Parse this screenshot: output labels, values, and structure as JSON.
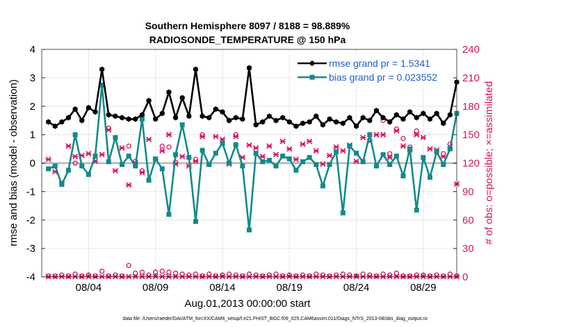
{
  "chart_data": {
    "type": "line",
    "title_line1": "Southern Hemisphere 8097 / 8188 = 98.889%",
    "title_line2": "RADIOSONDE_TEMPERATURE @ 150 hPa",
    "xlabel": "Aug.01,2013 00:00:00 start",
    "ylabel_left": "rmse and bias (model - observation)",
    "ylabel_right": "# of obs: o=possible; ×=assimilated",
    "ylim_left": [
      -4,
      4
    ],
    "ylim_right": [
      0,
      240
    ],
    "xlim": [
      0.5,
      31.5
    ],
    "left_ticks": [
      -4,
      -3,
      -2,
      -1,
      0,
      1,
      2,
      3,
      4
    ],
    "right_ticks": [
      0,
      30,
      60,
      90,
      120,
      150,
      180,
      210,
      240
    ],
    "x_ticks": [
      {
        "day": 4,
        "label": "08/04"
      },
      {
        "day": 9,
        "label": "08/09"
      },
      {
        "day": 14,
        "label": "08/14"
      },
      {
        "day": 19,
        "label": "08/19"
      },
      {
        "day": 24,
        "label": "08/24"
      },
      {
        "day": 29,
        "label": "08/29"
      }
    ],
    "legend": {
      "rmse_label": "rmse grand pr = 1.5341",
      "bias_label": "bias grand pr = 0.023552"
    },
    "footer": "data file: /Users/raeder/DAI/ATM_forcXX/CAM6_setup/f.e21.FHIST_BGC.f09_025.CAM6assim.011/Diags_NTrS_2013-08/obs_diag_output.nc",
    "colors": {
      "rmse": "#000000",
      "bias": "#138a8a",
      "obs": "#d6145f",
      "zero_line": "#b5b5b5",
      "grid": "#e6e6e6"
    },
    "series": [
      {
        "name": "rmse",
        "x": [
          1,
          1.5,
          2,
          2.5,
          3,
          3.5,
          4,
          4.5,
          5,
          5.5,
          6,
          6.5,
          7,
          7.5,
          8,
          8.5,
          9,
          9.5,
          10,
          10.5,
          11,
          11.5,
          12,
          12.5,
          13,
          13.5,
          14,
          14.5,
          15,
          15.5,
          16,
          16.5,
          17,
          17.5,
          18,
          18.5,
          19,
          19.5,
          20,
          20.5,
          21,
          21.5,
          22,
          22.5,
          23,
          23.5,
          24,
          24.5,
          25,
          25.5,
          26,
          26.5,
          27,
          27.5,
          28,
          28.5,
          29,
          29.5,
          30,
          30.5,
          31,
          31.5
        ],
        "values": [
          1.45,
          1.3,
          1.45,
          1.6,
          1.9,
          1.5,
          1.95,
          1.8,
          3.3,
          1.7,
          1.65,
          1.6,
          1.55,
          1.55,
          1.7,
          2.2,
          1.55,
          1.75,
          2.5,
          1.6,
          2.3,
          1.65,
          3.3,
          1.65,
          1.6,
          1.9,
          1.8,
          1.5,
          1.6,
          1.55,
          3.35,
          1.35,
          1.45,
          1.65,
          1.5,
          1.6,
          1.45,
          1.3,
          1.4,
          1.45,
          1.65,
          1.35,
          1.55,
          1.45,
          1.4,
          1.6,
          1.3,
          1.6,
          1.5,
          1.85,
          1.6,
          1.45,
          1.7,
          1.55,
          1.8,
          1.6,
          1.75,
          1.55,
          1.75,
          1.4,
          1.7,
          2.85
        ]
      },
      {
        "name": "bias",
        "x": [
          1,
          1.5,
          2,
          2.5,
          3,
          3.5,
          4,
          4.5,
          5,
          5.5,
          6,
          6.5,
          7,
          7.5,
          8,
          8.5,
          9,
          9.5,
          10,
          10.5,
          11,
          11.5,
          12,
          12.5,
          13,
          13.5,
          14,
          14.5,
          15,
          15.5,
          16,
          16.5,
          17,
          17.5,
          18,
          18.5,
          19,
          19.5,
          20,
          20.5,
          21,
          21.5,
          22,
          22.5,
          23,
          23.5,
          24,
          24.5,
          25,
          25.5,
          26,
          26.5,
          27,
          27.5,
          28,
          28.5,
          29,
          29.5,
          30,
          30.5,
          31,
          31.5
        ],
        "values": [
          -0.2,
          -0.1,
          -0.75,
          -0.25,
          1.0,
          -0.1,
          -0.4,
          0.25,
          2.75,
          0.05,
          0.9,
          -0.05,
          0.25,
          -0.1,
          1.55,
          -0.6,
          0.15,
          -0.2,
          -1.8,
          0.3,
          1.35,
          0.2,
          -2.05,
          0.45,
          -0.05,
          0.35,
          0.7,
          0.0,
          0.65,
          -0.1,
          -2.35,
          0.35,
          0.05,
          0.1,
          -0.1,
          0.25,
          0.15,
          -0.25,
          0.05,
          0.2,
          -0.05,
          -0.8,
          -0.05,
          0.4,
          -1.75,
          0.6,
          0.35,
          0.05,
          1.0,
          -0.1,
          0.3,
          -0.05,
          0.25,
          -0.45,
          0.5,
          -1.65,
          0.2,
          -0.5,
          0.4,
          -0.05,
          0.5,
          1.75
        ]
      },
      {
        "name": "obs possible (o)",
        "x": [
          1,
          1.5,
          2,
          2.5,
          3,
          3.5,
          4,
          4.5,
          5,
          5.5,
          6,
          6.5,
          7,
          7.5,
          8,
          8.5,
          9,
          9.5,
          10,
          10.5,
          11,
          11.5,
          12,
          12.5,
          13,
          13.5,
          14,
          14.5,
          15,
          15.5,
          16,
          16.5,
          17,
          17.5,
          18,
          18.5,
          19,
          19.5,
          20,
          20.5,
          21,
          21.5,
          22,
          22.5,
          23,
          23.5,
          24,
          24.5,
          25,
          25.5,
          26,
          26.5,
          27,
          27.5,
          28,
          28.5,
          29,
          29.5,
          30,
          30.5,
          31,
          31.5
        ],
        "values": [
          124,
          111,
          100,
          138,
          120,
          129,
          131,
          125,
          130,
          157,
          112,
          136,
          138,
          122,
          112,
          144,
          125,
          138,
          137,
          121,
          128,
          118,
          124,
          150,
          120,
          148,
          145,
          120,
          150,
          127,
          140,
          137,
          128,
          138,
          129,
          143,
          135,
          124,
          140,
          143,
          133,
          119,
          128,
          137,
          133,
          139,
          122,
          147,
          143,
          150,
          165,
          130,
          156,
          146,
          137,
          154,
          148,
          136,
          134,
          130,
          140,
          98
        ]
      },
      {
        "name": "obs assimilated (×)",
        "x": [
          1,
          1.5,
          2,
          2.5,
          3,
          3.5,
          4,
          4.5,
          5,
          5.5,
          6,
          6.5,
          7,
          7.5,
          8,
          8.5,
          9,
          9.5,
          10,
          10.5,
          11,
          11.5,
          12,
          12.5,
          13,
          13.5,
          14,
          14.5,
          15,
          15.5,
          16,
          16.5,
          17,
          17.5,
          18,
          18.5,
          19,
          19.5,
          20,
          20.5,
          21,
          21.5,
          22,
          22.5,
          23,
          23.5,
          24,
          24.5,
          25,
          25.5,
          26,
          26.5,
          27,
          27.5,
          28,
          28.5,
          29,
          29.5,
          30,
          30.5,
          31,
          31.5
        ],
        "values": [
          124,
          111,
          100,
          138,
          127,
          128,
          130,
          122,
          129,
          155,
          112,
          136,
          97,
          120,
          110,
          145,
          124,
          133,
          150,
          119,
          127,
          117,
          122,
          148,
          120,
          148,
          145,
          119,
          148,
          126,
          139,
          136,
          127,
          138,
          129,
          143,
          135,
          124,
          140,
          143,
          133,
          119,
          128,
          137,
          133,
          139,
          122,
          147,
          143,
          150,
          150,
          126,
          154,
          138,
          134,
          150,
          147,
          135,
          134,
          127,
          137,
          98
        ]
      },
      {
        "name": "obs bottom possible",
        "x": [
          1,
          1.5,
          2,
          2.5,
          3,
          3.5,
          4,
          4.5,
          5,
          5.5,
          6,
          6.5,
          7,
          7.5,
          8,
          8.5,
          9,
          9.5,
          10,
          10.5,
          11,
          11.5,
          12,
          12.5,
          13,
          13.5,
          14,
          14.5,
          15,
          15.5,
          16,
          16.5,
          17,
          17.5,
          18,
          18.5,
          19,
          19.5,
          20,
          20.5,
          21,
          21.5,
          22,
          22.5,
          23,
          23.5,
          24,
          24.5,
          25,
          25.5,
          26,
          26.5,
          27,
          27.5,
          28,
          28.5,
          29,
          29.5,
          30,
          30.5,
          31,
          31.5
        ],
        "values": [
          1,
          1,
          2,
          1,
          3,
          1,
          2,
          1,
          6,
          1,
          2,
          1,
          12,
          4,
          5,
          2,
          5,
          6,
          5,
          4,
          3,
          2,
          3,
          1,
          3,
          1,
          2,
          3,
          2,
          1,
          3,
          2,
          1,
          2,
          3,
          1,
          2,
          1,
          2,
          1,
          3,
          2,
          1,
          2,
          3,
          2,
          1,
          3,
          2,
          1,
          3,
          2,
          4,
          1,
          1,
          2,
          2,
          1,
          2,
          1,
          3,
          1
        ]
      }
    ]
  }
}
